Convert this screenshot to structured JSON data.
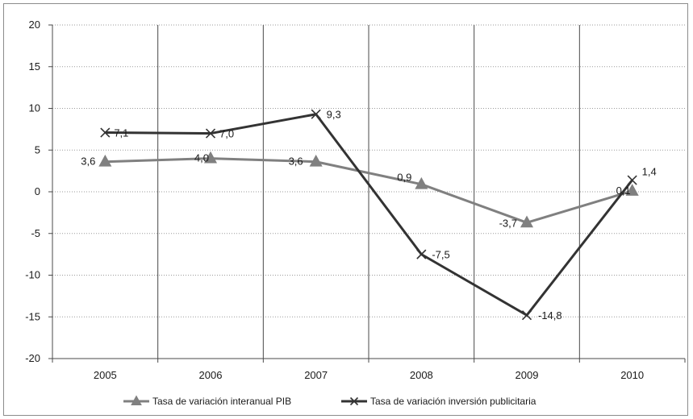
{
  "chart_data": {
    "type": "line",
    "categories": [
      "2005",
      "2006",
      "2007",
      "2008",
      "2009",
      "2010"
    ],
    "ylim": [
      -20,
      20
    ],
    "yticks": [
      20,
      15,
      10,
      5,
      0,
      -5,
      -10,
      -15,
      -20
    ],
    "grid": true,
    "legend_position": "bottom",
    "series": [
      {
        "name": "Tasa de variación interanual PIB",
        "values": [
          3.6,
          4.0,
          3.6,
          0.9,
          -3.7,
          0.1
        ],
        "labels": [
          "3,6",
          "4,0",
          "3,6",
          "0,9",
          "-3,7",
          "0,1"
        ],
        "marker": "triangle",
        "color": "#808080"
      },
      {
        "name": "Tasa de variación inversión publicitaria",
        "values": [
          7.1,
          7.0,
          9.3,
          -7.5,
          -14.8,
          1.4
        ],
        "labels": [
          "7,1",
          "7,0",
          "9,3",
          "-7,5",
          "-14,8",
          "1,4"
        ],
        "marker": "x",
        "color": "#333333"
      }
    ]
  }
}
